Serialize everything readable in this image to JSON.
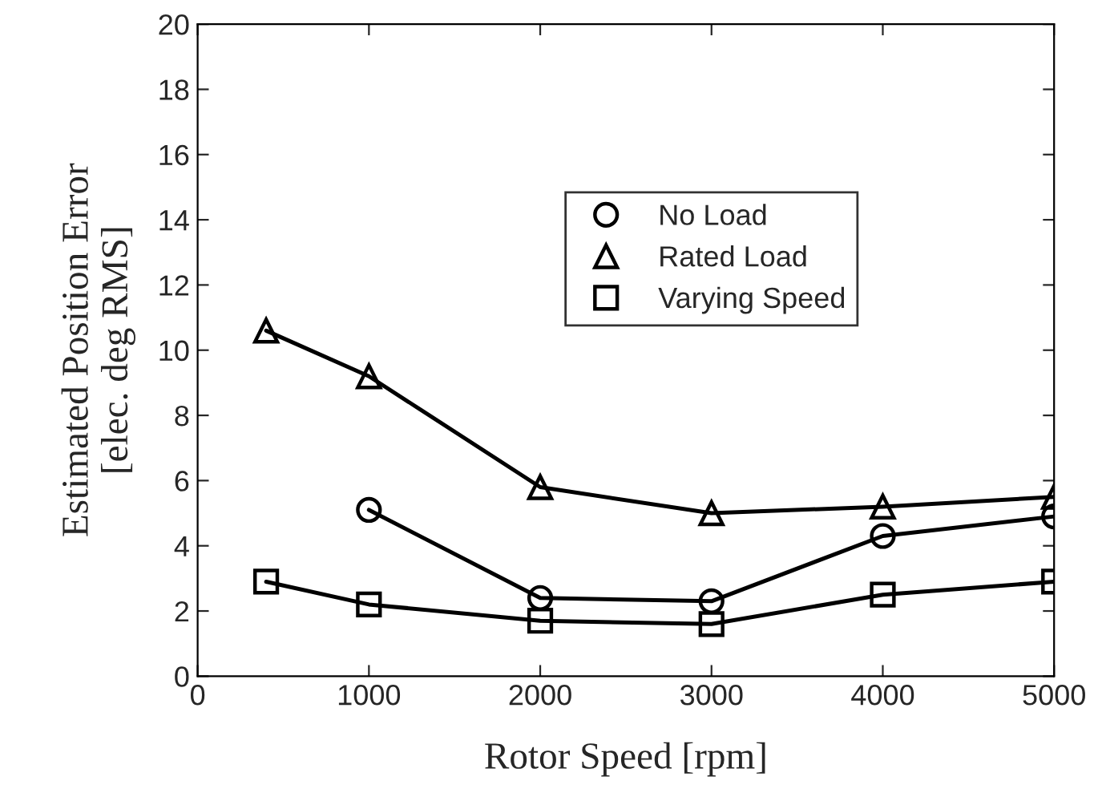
{
  "chart_data": {
    "type": "line",
    "xlabel": "Rotor Speed [rpm]",
    "ylabel": "Estimated Position Error\n[elec. deg RMS]",
    "series": [
      {
        "name": "No Load",
        "color": "#000000",
        "marker": "circle",
        "x": [
          1000,
          2000,
          3000,
          4000,
          5000
        ],
        "values": [
          5.1,
          2.4,
          2.3,
          4.3,
          4.9
        ]
      },
      {
        "name": "Rated Load",
        "color": "#000000",
        "marker": "triangle",
        "x": [
          400,
          1000,
          2000,
          3000,
          4000,
          5000
        ],
        "values": [
          10.6,
          9.2,
          5.8,
          5.0,
          5.2,
          5.5
        ]
      },
      {
        "name": "Varying Speed",
        "color": "#000000",
        "marker": "square",
        "x": [
          400,
          1000,
          2000,
          3000,
          4000,
          5000
        ],
        "values": [
          2.9,
          2.2,
          1.7,
          1.6,
          2.5,
          2.9
        ]
      }
    ],
    "xlim": [
      0,
      5000
    ],
    "xticks": [
      0,
      1000,
      2000,
      3000,
      4000,
      5000
    ],
    "ylim": [
      0,
      20
    ],
    "yticks": [
      0,
      2,
      4,
      6,
      8,
      10,
      12,
      14,
      16,
      18,
      20
    ],
    "grid": false,
    "legend": "center",
    "line_style": "solid"
  }
}
